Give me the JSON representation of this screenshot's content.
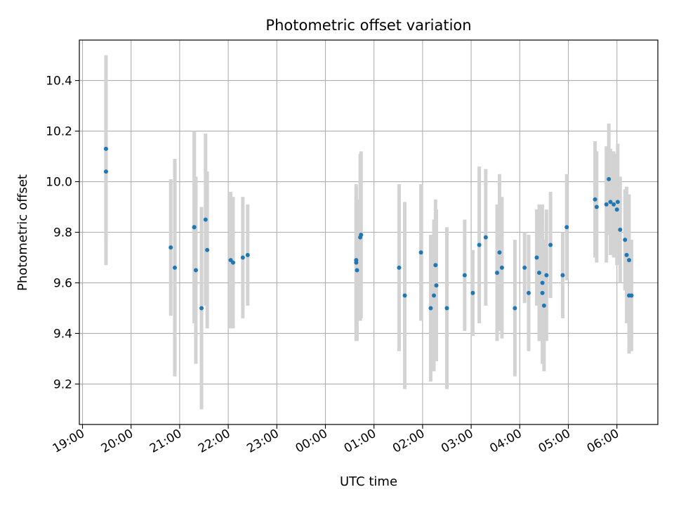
{
  "chart_data": {
    "type": "scatter",
    "title": "Photometric offset variation",
    "xlabel": "UTC time",
    "ylabel": "Photometric offset",
    "x_tick_labels": [
      "19:00",
      "20:00",
      "21:00",
      "22:00",
      "23:00",
      "00:00",
      "01:00",
      "02:00",
      "03:00",
      "04:00",
      "05:00",
      "06:00"
    ],
    "y_tick_labels": [
      "9.2",
      "9.4",
      "9.6",
      "9.8",
      "10.0",
      "10.2",
      "10.4"
    ],
    "ylim": [
      9.04,
      10.56
    ],
    "grid": true,
    "colors": {
      "points": "#1f77b4",
      "errorbars": "#d3d3d3",
      "grid": "#b0b0b0"
    },
    "series": [
      {
        "x": [
          "19:29",
          "19:29",
          "20:49",
          "20:54",
          "21:18",
          "21:18",
          "21:20",
          "21:27",
          "21:32",
          "21:34",
          "22:03",
          "22:06",
          "22:18",
          "22:24",
          "00:38",
          "00:38",
          "00:39",
          "00:43",
          "00:44",
          "01:31",
          "01:38",
          "01:58",
          "02:10",
          "02:14",
          "02:16",
          "02:17",
          "02:30",
          "02:52",
          "03:02",
          "03:10",
          "03:18",
          "03:32",
          "03:35",
          "03:38",
          "03:54",
          "04:06",
          "04:11",
          "04:21",
          "04:24",
          "04:28",
          "04:28",
          "04:30",
          "04:33",
          "04:38",
          "04:53",
          "04:58",
          "05:33",
          "05:35",
          "05:47",
          "05:50",
          "05:52",
          "05:56",
          "06:00",
          "06:01",
          "06:04",
          "06:10",
          "06:12",
          "06:15",
          "06:15",
          "06:18"
        ],
        "y": [
          10.13,
          10.04,
          9.74,
          9.66,
          9.82,
          9.82,
          9.65,
          9.5,
          9.85,
          9.73,
          9.69,
          9.68,
          9.7,
          9.71,
          9.69,
          9.68,
          9.65,
          9.78,
          9.79,
          9.66,
          9.55,
          9.72,
          9.5,
          9.55,
          9.67,
          9.59,
          9.5,
          9.63,
          9.56,
          9.75,
          9.78,
          9.64,
          9.72,
          9.66,
          9.5,
          9.66,
          9.56,
          9.7,
          9.64,
          9.6,
          9.56,
          9.51,
          9.63,
          9.75,
          9.63,
          9.82,
          9.93,
          9.9,
          9.91,
          10.01,
          9.92,
          9.91,
          9.89,
          9.92,
          9.81,
          9.77,
          9.71,
          9.69,
          9.55,
          9.55
        ],
        "err": [
          0.37,
          0.37,
          0.27,
          0.43,
          0.38,
          0.38,
          0.37,
          0.4,
          0.34,
          0.31,
          0.27,
          0.26,
          0.24,
          0.2,
          0.29,
          0.31,
          0.28,
          0.33,
          0.33,
          0.33,
          0.37,
          0.27,
          0.29,
          0.3,
          0.26,
          0.3,
          0.32,
          0.22,
          0.17,
          0.31,
          0.27,
          0.27,
          0.31,
          0.28,
          0.27,
          0.14,
          0.23,
          0.19,
          0.27,
          0.31,
          0.28,
          0.26,
          0.26,
          0.21,
          0.17,
          0.21,
          0.23,
          0.22,
          0.23,
          0.22,
          0.21,
          0.21,
          0.22,
          0.23,
          0.21,
          0.2,
          0.27,
          0.26,
          0.23,
          0.22
        ]
      }
    ]
  }
}
